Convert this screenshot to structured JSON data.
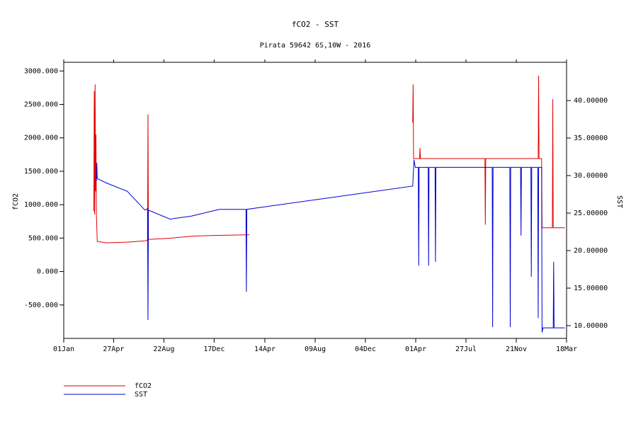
{
  "chart_data": {
    "type": "line",
    "title": "fCO2 - SST",
    "subtitle": "Pirata 59642 6S,10W - 2016",
    "y_label": "fCO2",
    "y2_label": "SST",
    "xlim": [
      0,
      1170
    ],
    "xticks": [
      {
        "value": 0,
        "label": "01Jan"
      },
      {
        "value": 116,
        "label": "27Apr"
      },
      {
        "value": 233,
        "label": "22Aug"
      },
      {
        "value": 350,
        "label": "17Dec"
      },
      {
        "value": 468,
        "label": "14Apr"
      },
      {
        "value": 585,
        "label": "09Aug"
      },
      {
        "value": 702,
        "label": "04Dec"
      },
      {
        "value": 819,
        "label": "01Apr"
      },
      {
        "value": 936,
        "label": "27Jul"
      },
      {
        "value": 1053,
        "label": "21Nov"
      },
      {
        "value": 1170,
        "label": "18Mar"
      }
    ],
    "ylim": [
      -1000,
      3130
    ],
    "yticks": [
      {
        "value": -500,
        "label": "-500.000"
      },
      {
        "value": 0,
        "label": "0.000"
      },
      {
        "value": 500,
        "label": "500.000"
      },
      {
        "value": 1000,
        "label": "1000.000"
      },
      {
        "value": 1500,
        "label": "1500.000"
      },
      {
        "value": 2000,
        "label": "2000.000"
      },
      {
        "value": 2500,
        "label": "2500.000"
      },
      {
        "value": 3000,
        "label": "3000.000"
      }
    ],
    "y2lim": [
      8.3,
      45.1
    ],
    "y2ticks": [
      {
        "value": 10,
        "label": "10.00000"
      },
      {
        "value": 15,
        "label": "15.00000"
      },
      {
        "value": 20,
        "label": "20.00000"
      },
      {
        "value": 25,
        "label": "25.00000"
      },
      {
        "value": 30,
        "label": "30.00000"
      },
      {
        "value": 35,
        "label": "35.00000"
      },
      {
        "value": 40,
        "label": "40.00000"
      }
    ],
    "legend": "bottom-left",
    "series": [
      {
        "name": "fCO2",
        "color": "#e00000",
        "x": [
          70,
          71,
          72,
          73,
          74,
          75,
          76,
          78,
          100,
          150,
          190,
          195,
          196,
          197,
          250,
          300,
          350,
          432,
          null,
          812,
          813,
          814,
          828,
          829,
          830,
          980,
          981,
          982,
          1104,
          1105,
          1106,
          1112,
          1113,
          1137,
          1138,
          1139,
          1166
        ],
        "values": [
          900,
          2700,
          850,
          2800,
          1200,
          2050,
          850,
          450,
          430,
          440,
          460,
          470,
          2350,
          480,
          500,
          530,
          540,
          550,
          null,
          2230,
          2800,
          1690,
          1690,
          1850,
          1690,
          1690,
          700,
          1690,
          1690,
          2930,
          1690,
          1690,
          655,
          655,
          2580,
          655,
          655
        ]
      },
      {
        "name": "SST",
        "color": "#0000d0",
        "axis": "y2",
        "x": [
          76,
          77,
          78,
          100,
          148,
          189,
          195,
          196,
          197,
          247,
          297,
          362,
          424,
          425,
          426,
          812,
          815,
          818,
          825,
          826,
          827,
          848,
          849,
          850,
          864,
          865,
          866,
          997,
          998,
          999,
          1038,
          1039,
          1040,
          1063,
          1064,
          1065,
          1087,
          1088,
          1089,
          1103,
          1104,
          1105,
          1112,
          1113,
          1115,
          1139,
          1140,
          1141,
          1166
        ],
        "values": [
          29.3,
          31.7,
          29.6,
          29.0,
          27.9,
          25.4,
          25.6,
          10.75,
          25.4,
          24.2,
          24.6,
          25.5,
          25.5,
          14.5,
          25.5,
          28.6,
          32.1,
          31.1,
          31.1,
          18,
          31.1,
          31.1,
          18,
          31.1,
          31.1,
          18.5,
          31.1,
          31.1,
          9.8,
          31.1,
          31.1,
          9.8,
          31.1,
          31.1,
          22,
          31.1,
          31.1,
          16.5,
          31.1,
          31.1,
          11,
          31.1,
          31.1,
          9.1,
          9.7,
          9.7,
          18.5,
          9.7,
          9.7
        ]
      }
    ]
  }
}
